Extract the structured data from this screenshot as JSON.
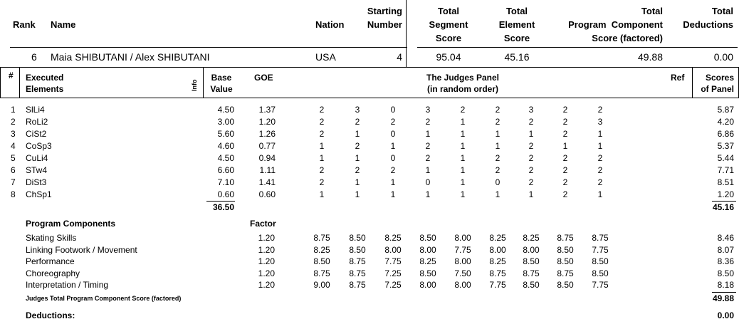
{
  "summary": {
    "headers": {
      "rank": "Rank",
      "name": "Name",
      "nation": "Nation",
      "starting_number": [
        "Starting",
        "Number"
      ],
      "total_segment_score": [
        "Total",
        "Segment",
        "Score"
      ],
      "total_element_score": [
        "Total",
        "Element",
        "Score"
      ],
      "total_pcs": [
        "Total",
        "Program  Component",
        "Score (factored)"
      ],
      "total_deductions": [
        "Total",
        "Deductions"
      ]
    },
    "row": {
      "rank": "6",
      "name": "Maia SHIBUTANI / Alex SHIBUTANI",
      "nation": "USA",
      "starting_number": "4",
      "total_segment_score": "95.04",
      "total_element_score": "45.16",
      "total_pcs": "49.88",
      "total_deductions": "0.00"
    }
  },
  "elements_table": {
    "headers": {
      "num": "#",
      "executed": [
        "Executed",
        "Elements"
      ],
      "info": "Info",
      "base_value": [
        "Base",
        "Value"
      ],
      "goe": "GOE",
      "judges_panel": [
        "The Judges Panel",
        "(in random order)"
      ],
      "ref": "Ref",
      "scores": [
        "Scores",
        "of Panel"
      ]
    },
    "rows": [
      {
        "num": "1",
        "element": "SlLi4",
        "base": "4.50",
        "goe": "1.37",
        "judges": [
          "2",
          "3",
          "0",
          "3",
          "2",
          "2",
          "3",
          "2",
          "2"
        ],
        "score": "5.87"
      },
      {
        "num": "2",
        "element": "RoLi2",
        "base": "3.00",
        "goe": "1.20",
        "judges": [
          "2",
          "2",
          "2",
          "2",
          "1",
          "2",
          "2",
          "2",
          "3"
        ],
        "score": "4.20"
      },
      {
        "num": "3",
        "element": "CiSt2",
        "base": "5.60",
        "goe": "1.26",
        "judges": [
          "2",
          "1",
          "0",
          "1",
          "1",
          "1",
          "1",
          "2",
          "1"
        ],
        "score": "6.86"
      },
      {
        "num": "4",
        "element": "CoSp3",
        "base": "4.60",
        "goe": "0.77",
        "judges": [
          "1",
          "2",
          "1",
          "2",
          "1",
          "1",
          "2",
          "1",
          "1"
        ],
        "score": "5.37"
      },
      {
        "num": "5",
        "element": "CuLi4",
        "base": "4.50",
        "goe": "0.94",
        "judges": [
          "1",
          "1",
          "0",
          "2",
          "1",
          "2",
          "2",
          "2",
          "2"
        ],
        "score": "5.44"
      },
      {
        "num": "6",
        "element": "STw4",
        "base": "6.60",
        "goe": "1.11",
        "judges": [
          "2",
          "2",
          "2",
          "1",
          "1",
          "2",
          "2",
          "2",
          "2"
        ],
        "score": "7.71"
      },
      {
        "num": "7",
        "element": "DiSt3",
        "base": "7.10",
        "goe": "1.41",
        "judges": [
          "2",
          "1",
          "1",
          "0",
          "1",
          "0",
          "2",
          "2",
          "2"
        ],
        "score": "8.51"
      },
      {
        "num": "8",
        "element": "ChSp1",
        "base": "0.60",
        "goe": "0.60",
        "judges": [
          "1",
          "1",
          "1",
          "1",
          "1",
          "1",
          "1",
          "2",
          "1"
        ],
        "score": "1.20"
      }
    ],
    "base_total": "36.50",
    "score_total": "45.16"
  },
  "program_components": {
    "title": "Program Components",
    "factor_label": "Factor",
    "rows": [
      {
        "name": "Skating Skills",
        "factor": "1.20",
        "judges": [
          "8.75",
          "8.50",
          "8.25",
          "8.50",
          "8.00",
          "8.25",
          "8.25",
          "8.75",
          "8.75"
        ],
        "score": "8.46"
      },
      {
        "name": "Linking Footwork / Movement",
        "factor": "1.20",
        "judges": [
          "8.25",
          "8.50",
          "8.00",
          "8.00",
          "7.75",
          "8.00",
          "8.00",
          "8.50",
          "7.75"
        ],
        "score": "8.07"
      },
      {
        "name": "Performance",
        "factor": "1.20",
        "judges": [
          "8.50",
          "8.75",
          "7.75",
          "8.25",
          "8.00",
          "8.25",
          "8.50",
          "8.50",
          "8.50"
        ],
        "score": "8.36"
      },
      {
        "name": "Choreography",
        "factor": "1.20",
        "judges": [
          "8.75",
          "8.75",
          "7.25",
          "8.50",
          "7.50",
          "8.75",
          "8.75",
          "8.75",
          "8.50"
        ],
        "score": "8.50"
      },
      {
        "name": "Interpretation / Timing",
        "factor": "1.20",
        "judges": [
          "9.00",
          "8.75",
          "7.25",
          "8.00",
          "8.00",
          "7.75",
          "8.50",
          "8.50",
          "7.75"
        ],
        "score": "8.18"
      }
    ],
    "total_label": "Judges Total Program Component Score (factored)",
    "total_value": "49.88"
  },
  "deductions": {
    "label": "Deductions:",
    "value": "0.00"
  }
}
